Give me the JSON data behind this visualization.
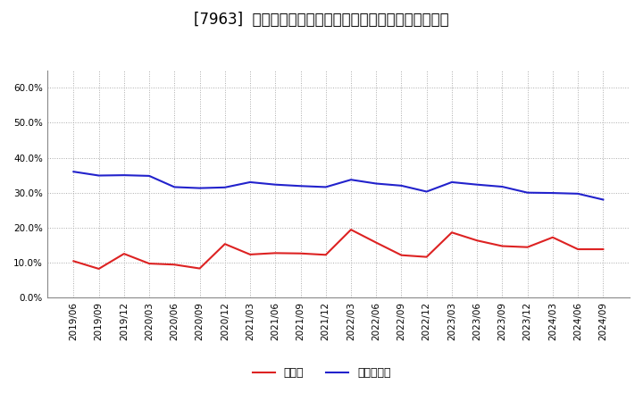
{
  "title": "[7963]  現預金、有利子負債の総資産に対する比率の推移",
  "x_labels": [
    "2019/06",
    "2019/09",
    "2019/12",
    "2020/03",
    "2020/06",
    "2020/09",
    "2020/12",
    "2021/03",
    "2021/06",
    "2021/09",
    "2021/12",
    "2022/03",
    "2022/06",
    "2022/09",
    "2022/12",
    "2023/03",
    "2023/06",
    "2023/09",
    "2023/12",
    "2024/03",
    "2024/06",
    "2024/09"
  ],
  "cash": [
    0.104,
    0.082,
    0.125,
    0.097,
    0.094,
    0.083,
    0.153,
    0.123,
    0.127,
    0.126,
    0.122,
    0.194,
    0.157,
    0.121,
    0.116,
    0.186,
    0.163,
    0.147,
    0.144,
    0.172,
    0.138,
    0.138
  ],
  "debt": [
    0.36,
    0.349,
    0.35,
    0.348,
    0.316,
    0.313,
    0.315,
    0.33,
    0.323,
    0.319,
    0.316,
    0.337,
    0.326,
    0.32,
    0.303,
    0.33,
    0.323,
    0.317,
    0.3,
    0.299,
    0.297,
    0.28
  ],
  "cash_color": "#dd2222",
  "debt_color": "#2222cc",
  "bg_color": "#ffffff",
  "plot_bg_color": "#ffffff",
  "grid_color": "#aaaaaa",
  "ylim": [
    0.0,
    0.65
  ],
  "yticks": [
    0.0,
    0.1,
    0.2,
    0.3,
    0.4,
    0.5,
    0.6
  ],
  "legend_cash": "現預金",
  "legend_debt": "有利子負債",
  "title_fontsize": 12,
  "axis_fontsize": 7.5,
  "legend_fontsize": 9
}
